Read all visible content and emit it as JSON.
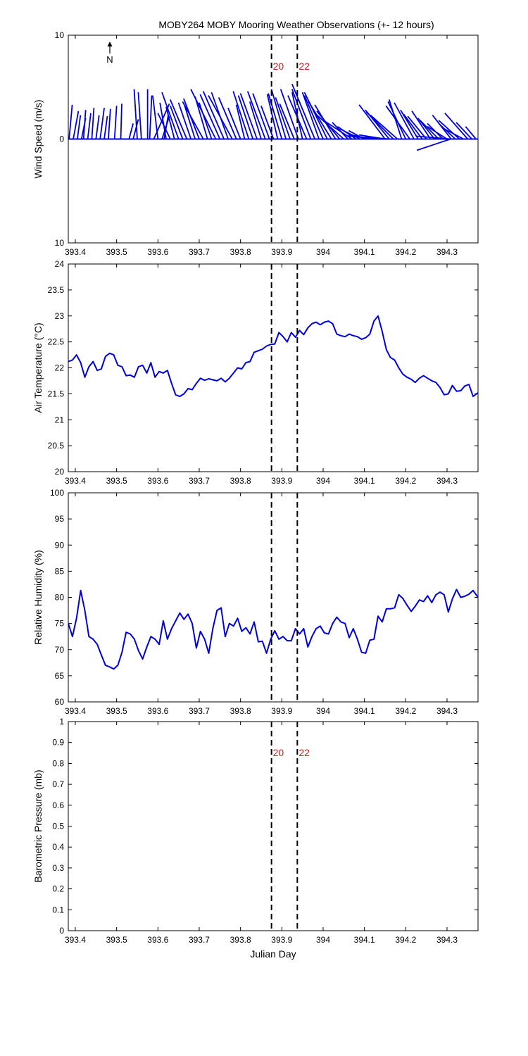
{
  "title": "MOBY264 MOBY Mooring Weather Observations (+- 12 hours)",
  "colors": {
    "series": "#0000dd",
    "marker_label": "#cc2222",
    "axes": "#000000"
  },
  "markers": [
    {
      "x": 393.875,
      "label": "20"
    },
    {
      "x": 393.9375,
      "label": "22"
    }
  ],
  "north_label": "N",
  "chart_data": [
    {
      "type": "vector",
      "ylabel": "Wind Speed (m/s)",
      "xlabel": "Julian Day",
      "xlim": [
        393.383,
        394.375
      ],
      "ylim": [
        -10,
        10
      ],
      "ytick_labels": [
        "10",
        "0",
        "10"
      ],
      "yticks": [
        10,
        0,
        -10
      ],
      "xticks": [
        393.4,
        393.5,
        393.6,
        393.7,
        393.8,
        393.9,
        394,
        394.1,
        394.2,
        394.3
      ],
      "xtick_labels": [
        "393.4",
        "393.5",
        "393.6",
        "393.7",
        "393.8",
        "393.9",
        "394",
        "394.1",
        "394.2",
        "394.3"
      ],
      "show_marker_labels": true,
      "vectors": [
        [
          393.385,
          0.3,
          3.3
        ],
        [
          393.395,
          0.5,
          2.7
        ],
        [
          393.405,
          0.3,
          2.3
        ],
        [
          393.415,
          0.4,
          2.0
        ],
        [
          393.42,
          0.2,
          2.8
        ],
        [
          393.43,
          0.3,
          2.5
        ],
        [
          393.44,
          0.2,
          3.0
        ],
        [
          393.45,
          0.3,
          2.3
        ],
        [
          393.46,
          0.4,
          3.0
        ],
        [
          393.47,
          0.3,
          2.2
        ],
        [
          393.48,
          0.2,
          2.9
        ],
        [
          393.495,
          0.2,
          3.2
        ],
        [
          393.51,
          0.1,
          3.4
        ],
        [
          393.53,
          0.4,
          1.5
        ],
        [
          393.54,
          0.5,
          1.9
        ],
        [
          393.55,
          -0.3,
          4.8
        ],
        [
          393.56,
          -0.3,
          4.5
        ],
        [
          393.575,
          0.0,
          4.8
        ],
        [
          393.58,
          0.2,
          4.2
        ],
        [
          393.59,
          1.5,
          3.4
        ],
        [
          393.6,
          -0.5,
          4.2
        ],
        [
          393.61,
          0.7,
          2.2
        ],
        [
          393.615,
          0.4,
          2.3
        ],
        [
          393.62,
          -0.6,
          3.5
        ],
        [
          393.63,
          -1.2,
          2.5
        ],
        [
          393.64,
          -0.8,
          3.1
        ],
        [
          393.65,
          -1.6,
          4.5
        ],
        [
          393.66,
          -1.2,
          3.2
        ],
        [
          393.67,
          -1.6,
          3.8
        ],
        [
          393.68,
          -1.2,
          3.5
        ],
        [
          393.69,
          -1.0,
          3.2
        ],
        [
          393.7,
          -1.5,
          3.9
        ],
        [
          393.71,
          -2.0,
          3.6
        ],
        [
          393.72,
          -1.2,
          4.1
        ],
        [
          393.73,
          -1.2,
          3.5
        ],
        [
          393.74,
          -2.4,
          4.8
        ],
        [
          393.75,
          -1.9,
          4.3
        ],
        [
          393.76,
          -2.0,
          4.6
        ],
        [
          393.77,
          -1.6,
          4.5
        ],
        [
          393.78,
          -2.3,
          4.2
        ],
        [
          393.79,
          -1.7,
          4.0
        ],
        [
          393.8,
          -1.2,
          3.0
        ],
        [
          393.81,
          -0.8,
          3.3
        ],
        [
          393.82,
          -1.5,
          4.6
        ],
        [
          393.83,
          -1.4,
          4.2
        ],
        [
          393.84,
          -1.6,
          4.4
        ],
        [
          393.85,
          -1.1,
          3.6
        ],
        [
          393.86,
          -1.7,
          4.6
        ],
        [
          393.87,
          -1.6,
          4.4
        ],
        [
          393.88,
          -1.2,
          3.2
        ],
        [
          393.89,
          -1.0,
          4.3
        ],
        [
          393.9,
          -1.3,
          4.4
        ],
        [
          393.91,
          -1.4,
          4.8
        ],
        [
          393.92,
          -1.4,
          4.0
        ],
        [
          393.93,
          -1.4,
          3.4
        ],
        [
          393.94,
          -1.7,
          4.8
        ],
        [
          393.95,
          -1.0,
          4.5
        ],
        [
          393.96,
          -1.8,
          4.2
        ],
        [
          393.97,
          -1.8,
          4.8
        ],
        [
          393.98,
          -2.2,
          5.3
        ],
        [
          393.99,
          -1.6,
          4.5
        ],
        [
          394.0,
          -1.8,
          4.2
        ],
        [
          394.01,
          -2.2,
          4.5
        ],
        [
          394.02,
          -2.2,
          3.6
        ],
        [
          394.03,
          -2.0,
          3.3
        ],
        [
          394.04,
          -2.2,
          2.7
        ],
        [
          394.05,
          -2.8,
          2.5
        ],
        [
          394.06,
          -1.5,
          1.6
        ],
        [
          394.07,
          -2.6,
          1.7
        ],
        [
          394.08,
          -1.8,
          1.2
        ],
        [
          394.09,
          -2.0,
          1.0
        ],
        [
          394.1,
          -1.5,
          0.8
        ],
        [
          394.11,
          -2.0,
          0.5
        ],
        [
          394.12,
          -2.2,
          0.4
        ],
        [
          394.13,
          -2.8,
          0.3
        ],
        [
          394.14,
          -3.1,
          0.3
        ],
        [
          394.15,
          -2.5,
          0.4
        ],
        [
          394.16,
          -2.3,
          0.2
        ],
        [
          394.1,
          8.3,
          0.0
        ],
        [
          394.15,
          -2.5,
          3.3
        ],
        [
          394.16,
          -2.3,
          2.8
        ],
        [
          394.17,
          -2.6,
          2.6
        ],
        [
          394.18,
          -2.6,
          2.3
        ],
        [
          394.19,
          -1.2,
          3.8
        ],
        [
          394.2,
          -1.7,
          3.6
        ],
        [
          394.21,
          -2.3,
          3.2
        ],
        [
          394.22,
          -1.9,
          3.5
        ],
        [
          394.23,
          -1.7,
          2.8
        ],
        [
          394.24,
          -1.8,
          2.4
        ],
        [
          394.25,
          -1.8,
          2.2
        ],
        [
          394.26,
          -1.8,
          2.7
        ],
        [
          394.27,
          -1.6,
          2.0
        ],
        [
          394.28,
          -1.8,
          1.8
        ],
        [
          394.29,
          -1.5,
          1.5
        ],
        [
          394.3,
          -1.9,
          1.2
        ],
        [
          394.31,
          -1.8,
          2.3
        ],
        [
          394.32,
          -1.6,
          1.5
        ],
        [
          394.33,
          -2.0,
          1.8
        ],
        [
          394.34,
          -1.9,
          1.0
        ],
        [
          394.35,
          -2.2,
          2.5
        ],
        [
          394.36,
          -1.5,
          1.6
        ],
        [
          394.37,
          -1.0,
          1.2
        ]
      ]
    },
    {
      "type": "line",
      "ylabel": "Air Temperature (°C)",
      "xlabel": "Julian Day",
      "xlim": [
        393.383,
        394.375
      ],
      "ylim": [
        20,
        24
      ],
      "yticks": [
        20,
        20.5,
        21,
        21.5,
        22,
        22.5,
        23,
        23.5,
        24
      ],
      "ytick_labels": [
        "20",
        "20.5",
        "21",
        "21.5",
        "22",
        "22.5",
        "23",
        "23.5",
        "24"
      ],
      "xticks": [
        393.4,
        393.5,
        393.6,
        393.7,
        393.8,
        393.9,
        394,
        394.1,
        394.2,
        394.3
      ],
      "xtick_labels": [
        "393.4",
        "393.5",
        "393.6",
        "393.7",
        "393.8",
        "393.9",
        "394",
        "394.1",
        "394.2",
        "394.3"
      ],
      "show_marker_labels": false,
      "x": [
        393.383,
        393.393,
        393.403,
        393.413,
        393.423,
        393.433,
        393.443,
        393.453,
        393.463,
        393.473,
        393.483,
        393.493,
        393.503,
        393.513,
        393.523,
        393.533,
        393.543,
        393.553,
        393.563,
        393.573,
        393.583,
        393.593,
        393.603,
        393.613,
        393.623,
        393.633,
        393.643,
        393.653,
        393.663,
        393.673,
        393.683,
        393.693,
        393.703,
        393.713,
        393.723,
        393.733,
        393.743,
        393.753,
        393.763,
        393.773,
        393.783,
        393.793,
        393.803,
        393.813,
        393.823,
        393.833,
        393.843,
        393.853,
        393.863,
        393.873,
        393.883,
        393.893,
        393.903,
        393.913,
        393.923,
        393.933,
        393.943,
        393.953,
        393.963,
        393.973,
        393.983,
        393.993,
        394.003,
        394.013,
        394.023,
        394.033,
        394.043,
        394.053,
        394.063,
        394.073,
        394.083,
        394.093,
        394.103,
        394.113,
        394.123,
        394.133,
        394.143,
        394.153,
        394.163,
        394.173,
        394.183,
        394.193,
        394.203,
        394.213,
        394.223,
        394.233,
        394.243,
        394.253,
        394.263,
        394.273,
        394.283,
        394.293,
        394.303,
        394.313,
        394.323,
        394.333,
        394.343,
        394.353,
        394.363,
        394.375
      ],
      "y": [
        22.12,
        22.15,
        22.25,
        22.1,
        21.82,
        22.02,
        22.12,
        21.95,
        21.98,
        22.22,
        22.28,
        22.25,
        22.05,
        22.02,
        21.85,
        21.86,
        21.82,
        22.02,
        22.05,
        21.9,
        22.1,
        21.82,
        21.93,
        21.9,
        21.95,
        21.7,
        21.48,
        21.45,
        21.5,
        21.6,
        21.58,
        21.7,
        21.8,
        21.76,
        21.79,
        21.77,
        21.75,
        21.8,
        21.73,
        21.8,
        21.9,
        22.0,
        21.98,
        22.1,
        22.12,
        22.3,
        22.33,
        22.36,
        22.42,
        22.45,
        22.46,
        22.68,
        22.6,
        22.5,
        22.68,
        22.59,
        22.72,
        22.64,
        22.77,
        22.85,
        22.88,
        22.83,
        22.88,
        22.9,
        22.85,
        22.65,
        22.62,
        22.6,
        22.65,
        22.62,
        22.6,
        22.55,
        22.58,
        22.65,
        22.9,
        23.0,
        22.7,
        22.35,
        22.2,
        22.15,
        22.0,
        21.88,
        21.82,
        21.78,
        21.72,
        21.8,
        21.85,
        21.8,
        21.75,
        21.72,
        21.62,
        21.48,
        21.5,
        21.66,
        21.55,
        21.56,
        21.65,
        21.68,
        21.45,
        21.52
      ]
    },
    {
      "type": "line",
      "ylabel": "Relative Humidity (%)",
      "xlabel": "Julian Day",
      "xlim": [
        393.383,
        394.375
      ],
      "ylim": [
        60,
        100
      ],
      "yticks": [
        60,
        65,
        70,
        75,
        80,
        85,
        90,
        95,
        100
      ],
      "ytick_labels": [
        "60",
        "65",
        "70",
        "75",
        "80",
        "85",
        "90",
        "95",
        "100"
      ],
      "xticks": [
        393.4,
        393.5,
        393.6,
        393.7,
        393.8,
        393.9,
        394,
        394.1,
        394.2,
        394.3
      ],
      "xtick_labels": [
        "393.4",
        "393.5",
        "393.6",
        "393.7",
        "393.8",
        "393.9",
        "394",
        "394.1",
        "394.2",
        "394.3"
      ],
      "show_marker_labels": false,
      "x": [
        393.383,
        393.393,
        393.403,
        393.413,
        393.423,
        393.433,
        393.443,
        393.453,
        393.463,
        393.473,
        393.483,
        393.493,
        393.503,
        393.513,
        393.523,
        393.533,
        393.543,
        393.553,
        393.563,
        393.573,
        393.583,
        393.593,
        393.603,
        393.613,
        393.623,
        393.633,
        393.643,
        393.653,
        393.663,
        393.673,
        393.683,
        393.693,
        393.703,
        393.713,
        393.723,
        393.733,
        393.743,
        393.753,
        393.763,
        393.773,
        393.783,
        393.793,
        393.803,
        393.813,
        393.823,
        393.833,
        393.843,
        393.853,
        393.863,
        393.873,
        393.883,
        393.893,
        393.903,
        393.913,
        393.923,
        393.933,
        393.943,
        393.953,
        393.963,
        393.973,
        393.983,
        393.993,
        394.003,
        394.013,
        394.023,
        394.033,
        394.043,
        394.053,
        394.063,
        394.073,
        394.083,
        394.093,
        394.103,
        394.113,
        394.123,
        394.133,
        394.143,
        394.153,
        394.163,
        394.173,
        394.183,
        394.193,
        394.203,
        394.213,
        394.223,
        394.233,
        394.243,
        394.253,
        394.263,
        394.273,
        394.283,
        394.293,
        394.303,
        394.313,
        394.323,
        394.333,
        394.343,
        394.353,
        394.363,
        394.375
      ],
      "y": [
        75.0,
        72.5,
        76.0,
        81.3,
        77.5,
        72.5,
        72.0,
        71.0,
        69.0,
        67.0,
        66.7,
        66.3,
        67.0,
        69.5,
        73.3,
        73.0,
        72.0,
        69.8,
        68.2,
        70.5,
        72.5,
        72.0,
        71.0,
        75.5,
        72.0,
        74.0,
        75.5,
        77.0,
        75.8,
        76.8,
        75.0,
        70.3,
        73.5,
        72.0,
        69.3,
        74.0,
        77.5,
        78.0,
        72.5,
        75.0,
        74.5,
        76.0,
        73.5,
        74.2,
        73.0,
        75.3,
        71.5,
        71.6,
        69.3,
        72.0,
        73.6,
        72.0,
        72.5,
        71.7,
        71.7,
        74.0,
        73.0,
        74.0,
        70.5,
        72.5,
        74.0,
        74.5,
        73.2,
        73.0,
        75.0,
        76.2,
        75.3,
        75.0,
        72.3,
        74.0,
        72.0,
        69.5,
        69.3,
        71.8,
        72.0,
        76.4,
        75.3,
        77.8,
        77.8,
        78.0,
        80.5,
        79.8,
        78.5,
        77.3,
        78.3,
        79.5,
        79.2,
        80.3,
        79.0,
        80.5,
        81.0,
        80.5,
        77.2,
        79.7,
        81.5,
        80.0,
        80.2,
        80.6,
        81.3,
        80.0
      ]
    },
    {
      "type": "line",
      "ylabel": "Barometric Pressure (mb)",
      "xlabel": "Julian Day",
      "xlim": [
        393.383,
        394.375
      ],
      "ylim": [
        0,
        1
      ],
      "yticks": [
        0,
        0.1,
        0.2,
        0.3,
        0.4,
        0.5,
        0.6,
        0.7,
        0.8,
        0.9,
        1
      ],
      "ytick_labels": [
        "0",
        "0.1",
        "0.2",
        "0.3",
        "0.4",
        "0.5",
        "0.6",
        "0.7",
        "0.8",
        "0.9",
        "1"
      ],
      "xticks": [
        393.4,
        393.5,
        393.6,
        393.7,
        393.8,
        393.9,
        394,
        394.1,
        394.2,
        394.3
      ],
      "xtick_labels": [
        "393.4",
        "393.5",
        "393.6",
        "393.7",
        "393.8",
        "393.9",
        "394",
        "394.1",
        "394.2",
        "394.3"
      ],
      "show_marker_labels": true,
      "x": [],
      "y": []
    }
  ]
}
